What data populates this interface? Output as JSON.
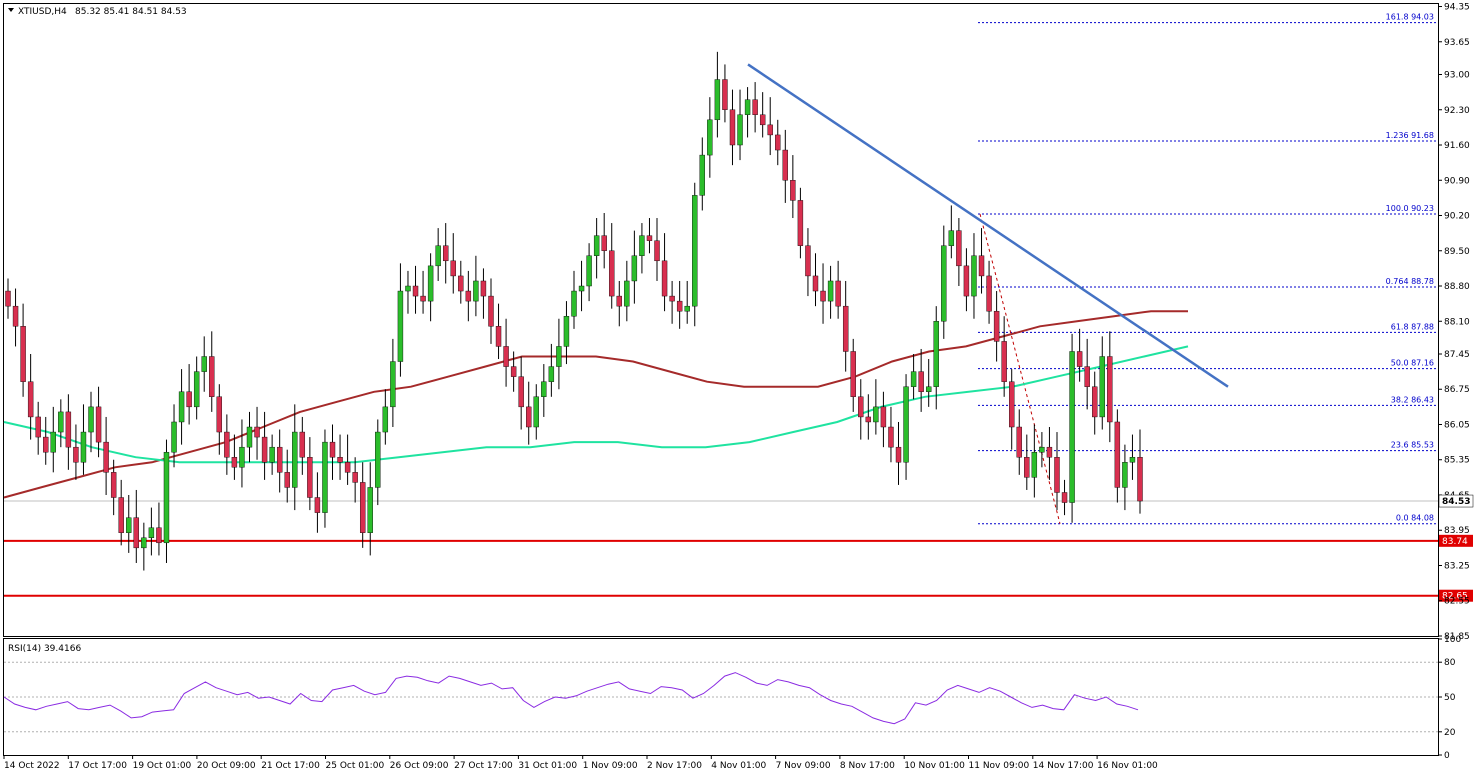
{
  "window": {
    "title_icon": "chart-menu-icon",
    "symbol": "XTIUSD,H4",
    "ohlc": "85.32 85.41 84.51 84.53"
  },
  "colors": {
    "bull": "#2bbd2b",
    "bear": "#d82f4f",
    "ma_slow": "#a52a2a",
    "ma_fast": "#1fe3a0",
    "trendline": "#4472c4",
    "support": "#e00000",
    "fib": "#0000cc",
    "rsi": "#8a2be2"
  },
  "chart_data": [
    {
      "type": "candlestick",
      "symbol": "XTIUSD",
      "timeframe": "H4",
      "ylim": [
        81.85,
        94.4
      ],
      "y_ticks": [
        "94.35",
        "93.65",
        "93.00",
        "92.30",
        "91.60",
        "90.90",
        "90.20",
        "89.50",
        "88.80",
        "88.10",
        "87.45",
        "86.75",
        "86.05",
        "85.35",
        "84.65",
        "83.95",
        "83.25",
        "82.55",
        "81.85"
      ],
      "x_ticks": [
        "14 Oct 2022",
        "17 Oct 17:00",
        "19 Oct 01:00",
        "20 Oct 09:00",
        "21 Oct 17:00",
        "25 Oct 01:00",
        "26 Oct 09:00",
        "27 Oct 17:00",
        "31 Oct 01:00",
        "1 Nov 09:00",
        "2 Nov 17:00",
        "4 Nov 01:00",
        "7 Nov 09:00",
        "8 Nov 17:00",
        "10 Nov 01:00",
        "11 Nov 09:00",
        "14 Nov 17:00",
        "16 Nov 01:00"
      ],
      "current_price": "84.53",
      "support_levels": [
        "83.74",
        "82.65"
      ],
      "fibonacci": [
        {
          "label": "161.8 94.03",
          "price": 94.03
        },
        {
          "label": "1.236 91.68",
          "price": 91.68
        },
        {
          "label": "100.0 90.23",
          "price": 90.23
        },
        {
          "label": "0.764 88.78",
          "price": 88.78
        },
        {
          "label": "61.8 87.88",
          "price": 87.88
        },
        {
          "label": "50.0 87.16",
          "price": 87.16
        },
        {
          "label": "38.2 86.43",
          "price": 86.43
        },
        {
          "label": "23.6 85.53",
          "price": 85.53
        },
        {
          "label": "0.0 84.08",
          "price": 84.08
        }
      ],
      "trendline": {
        "from": [
          0,
          93.2
        ],
        "to": [
          1,
          86.8
        ]
      },
      "candles_close": [
        88.4,
        88.0,
        86.9,
        86.2,
        85.8,
        85.5,
        85.9,
        86.3,
        85.6,
        85.3,
        85.9,
        86.4,
        85.7,
        85.1,
        84.6,
        83.9,
        84.2,
        83.6,
        83.8,
        84.0,
        83.7,
        85.5,
        86.1,
        86.7,
        86.4,
        87.1,
        87.4,
        86.6,
        85.9,
        85.4,
        85.2,
        85.6,
        86.0,
        85.8,
        85.3,
        85.6,
        85.1,
        84.8,
        85.9,
        85.4,
        84.6,
        84.3,
        85.7,
        85.4,
        85.3,
        85.1,
        84.9,
        83.9,
        84.8,
        85.9,
        86.4,
        87.3,
        88.7,
        88.8,
        88.6,
        88.5,
        89.2,
        89.6,
        89.3,
        89.0,
        88.7,
        88.5,
        88.9,
        88.6,
        88.0,
        87.6,
        87.2,
        87.0,
        86.4,
        86.0,
        86.6,
        86.9,
        87.2,
        87.6,
        88.2,
        88.7,
        88.8,
        89.4,
        89.8,
        89.5,
        88.6,
        88.4,
        88.9,
        89.4,
        89.8,
        89.7,
        89.3,
        88.6,
        88.5,
        88.3,
        88.4,
        90.6,
        91.4,
        92.1,
        92.9,
        92.3,
        91.6,
        92.2,
        92.5,
        92.2,
        92.0,
        91.8,
        91.5,
        90.9,
        90.5,
        89.6,
        89.0,
        88.7,
        88.5,
        88.9,
        88.4,
        87.5,
        86.6,
        86.2,
        86.1,
        86.4,
        86.0,
        85.6,
        85.3,
        86.8,
        87.1,
        86.7,
        86.8,
        88.1,
        89.6,
        89.9,
        89.2,
        88.6,
        89.4,
        89.0,
        88.3,
        87.7,
        86.9,
        86.0,
        85.4,
        85.0,
        85.5,
        85.6,
        85.4,
        84.7,
        84.5,
        87.5,
        87.2,
        86.8,
        86.2,
        87.4,
        86.1,
        84.8,
        85.3,
        85.4,
        84.53
      ],
      "series": [
        {
          "name": "",
          "role": "slow_ma",
          "values": [
            84.6,
            84.8,
            85.0,
            85.2,
            85.3,
            85.5,
            85.7,
            86.0,
            86.3,
            86.5,
            86.7,
            86.8,
            87.0,
            87.2,
            87.4,
            87.4,
            87.4,
            87.3,
            87.1,
            86.9,
            86.8,
            86.8,
            86.8,
            87.0,
            87.3,
            87.5,
            87.6,
            87.8,
            88.0,
            88.1,
            88.2,
            88.3,
            88.3
          ]
        },
        {
          "name": "",
          "role": "fast_ma",
          "values": [
            86.1,
            85.9,
            85.6,
            85.4,
            85.3,
            85.3,
            85.3,
            85.3,
            85.3,
            85.4,
            85.5,
            85.6,
            85.6,
            85.7,
            85.7,
            85.6,
            85.6,
            85.7,
            85.9,
            86.1,
            86.4,
            86.6,
            86.7,
            86.8,
            87.0,
            87.2,
            87.4,
            87.6
          ]
        }
      ]
    },
    {
      "type": "line",
      "title": "RSI(14) 39.4166",
      "ylim": [
        0,
        100
      ],
      "y_ticks": [
        "100",
        "80",
        "50",
        "20",
        "0"
      ],
      "series": [
        {
          "name": "RSI(14)",
          "values": [
            50,
            44,
            41,
            39,
            42,
            44,
            46,
            40,
            39,
            41,
            43,
            38,
            32,
            33,
            37,
            38,
            39,
            53,
            58,
            63,
            58,
            55,
            52,
            54,
            49,
            50,
            47,
            44,
            53,
            47,
            46,
            56,
            58,
            60,
            55,
            52,
            54,
            66,
            68,
            67,
            64,
            62,
            68,
            66,
            63,
            60,
            62,
            57,
            58,
            47,
            41,
            46,
            50,
            49,
            51,
            55,
            58,
            61,
            63,
            57,
            55,
            53,
            59,
            58,
            56,
            49,
            53,
            60,
            68,
            71,
            67,
            62,
            60,
            65,
            63,
            60,
            58,
            52,
            47,
            44,
            42,
            37,
            32,
            29,
            27,
            31,
            45,
            43,
            47,
            56,
            60,
            57,
            54,
            58,
            55,
            50,
            45,
            41,
            43,
            40,
            39,
            52,
            49,
            47,
            50,
            44,
            42,
            39
          ]
        }
      ]
    }
  ]
}
